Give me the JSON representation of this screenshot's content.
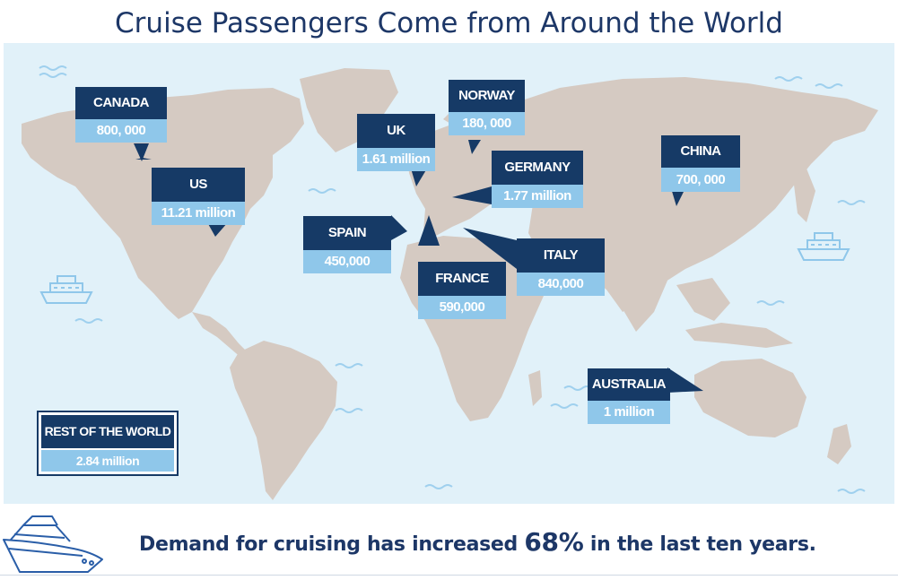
{
  "title": "Cruise Passengers Come from Around the World",
  "colors": {
    "ocean": "#e1f1f9",
    "land": "#d5cac2",
    "label_bg": "#163a66",
    "value_bg": "#8fc7ea",
    "title_text": "#1d3767",
    "wave": "#9fd0ee"
  },
  "countries": [
    {
      "id": "canada",
      "label": "CANADA",
      "value": "800, 000"
    },
    {
      "id": "us",
      "label": "US",
      "value": "11.21 million"
    },
    {
      "id": "uk",
      "label": "UK",
      "value": "1.61 million"
    },
    {
      "id": "norway",
      "label": "NORWAY",
      "value": "180, 000"
    },
    {
      "id": "germany",
      "label": "GERMANY",
      "value": "1.77 million"
    },
    {
      "id": "china",
      "label": "CHINA",
      "value": "700, 000"
    },
    {
      "id": "spain",
      "label": "SPAIN",
      "value": "450,000"
    },
    {
      "id": "france",
      "label": "FRANCE",
      "value": "590,000"
    },
    {
      "id": "italy",
      "label": "ITALY",
      "value": "840,000"
    },
    {
      "id": "australia",
      "label": "AUSTRALIA",
      "value": "1 million"
    }
  ],
  "rest_of_world": {
    "label": "REST OF THE WORLD",
    "value": "2.84 million"
  },
  "footer": {
    "text_before": "Demand for cruising has increased ",
    "percent": "68%",
    "text_after": " in the last ten years."
  },
  "icons": [
    "ship-icon",
    "wave-icon",
    "cruise-ship-outline-icon"
  ]
}
